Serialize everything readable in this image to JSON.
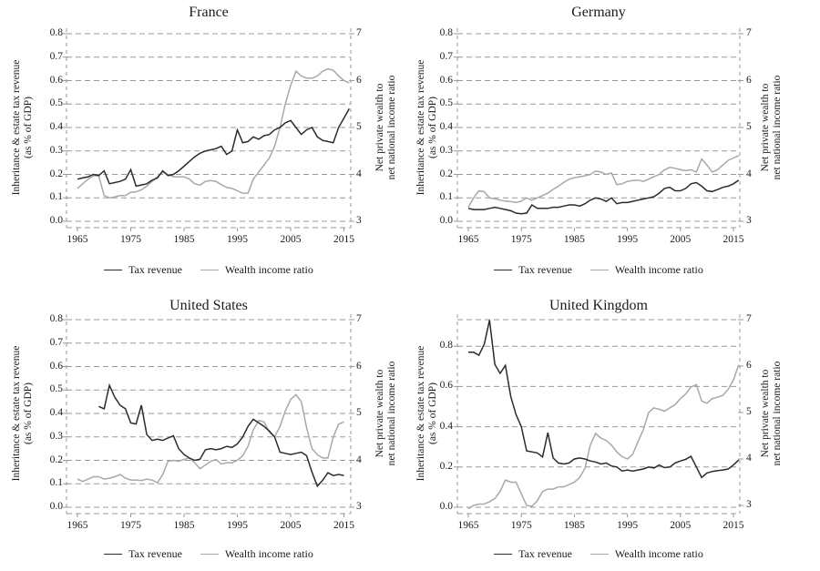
{
  "figure": {
    "background": "#ffffff",
    "grid_color": "#999999",
    "text_color": "#1a1a1a",
    "series_colors": {
      "tax_revenue": "#2b2b2b",
      "wealth_income_ratio": "#a8a8a8"
    }
  },
  "chart_data": [
    {
      "type": "line",
      "title": "France",
      "x_axis": {
        "tick_labels": [
          "1965",
          "1975",
          "1985",
          "1995",
          "2005",
          "2015"
        ]
      },
      "left_axis": {
        "label": [
          "Inheritance & estate tax revenue",
          "(as % of GDP)"
        ],
        "tick_labels": [
          "0.0",
          "0.1",
          "0.2",
          "0.3",
          "0.4",
          "0.5",
          "0.6",
          "0.7",
          "0.8"
        ],
        "range": [
          0,
          0.8
        ]
      },
      "right_axis": {
        "label": [
          "Net private wealth to",
          "net national income ratio"
        ],
        "tick_labels": [
          "3",
          "4",
          "5",
          "6",
          "7"
        ],
        "range": [
          3,
          7
        ]
      },
      "legend": [
        "Tax revenue",
        "Wealth income ratio"
      ],
      "series": [
        {
          "name": "Tax revenue",
          "axis": "left",
          "color": "#2b2b2b",
          "start_year": 1965,
          "values": [
            0.18,
            0.185,
            0.19,
            0.2,
            0.195,
            0.215,
            0.16,
            0.165,
            0.17,
            0.18,
            0.22,
            0.15,
            0.155,
            0.16,
            0.175,
            0.185,
            0.215,
            0.195,
            0.2,
            0.215,
            0.235,
            0.255,
            0.275,
            0.29,
            0.3,
            0.305,
            0.31,
            0.32,
            0.285,
            0.3,
            0.39,
            0.335,
            0.34,
            0.36,
            0.35,
            0.365,
            0.37,
            0.39,
            0.4,
            0.42,
            0.43,
            0.4,
            0.37,
            0.39,
            0.4,
            0.36,
            0.345,
            0.34,
            0.335,
            0.4,
            0.44,
            0.48
          ]
        },
        {
          "name": "Wealth income ratio",
          "axis": "right",
          "color": "#a8a8a8",
          "start_year": 1965,
          "values": [
            3.7,
            3.8,
            3.9,
            3.97,
            3.97,
            3.55,
            3.5,
            3.52,
            3.55,
            3.55,
            3.62,
            3.63,
            3.67,
            3.75,
            3.85,
            3.95,
            4.05,
            4.0,
            3.95,
            3.95,
            3.95,
            3.9,
            3.8,
            3.77,
            3.85,
            3.87,
            3.85,
            3.78,
            3.72,
            3.7,
            3.65,
            3.6,
            3.6,
            3.9,
            4.05,
            4.2,
            4.35,
            4.6,
            5.0,
            5.5,
            5.9,
            6.2,
            6.1,
            6.05,
            6.05,
            6.1,
            6.2,
            6.25,
            6.22,
            6.1,
            6.0,
            5.95
          ]
        }
      ]
    },
    {
      "type": "line",
      "title": "Germany",
      "x_axis": {
        "tick_labels": [
          "1965",
          "1975",
          "1985",
          "1995",
          "2005",
          "2015"
        ]
      },
      "left_axis": {
        "label": [
          "Inheritance & estate tax revenue",
          "(as % of GDP)"
        ],
        "tick_labels": [
          "0.0",
          "0.1",
          "0.2",
          "0.3",
          "0.4",
          "0.5",
          "0.6",
          "0.7",
          "0.8"
        ],
        "range": [
          0,
          0.8
        ]
      },
      "right_axis": {
        "label": [
          "Net private wealth to",
          "net national income ratio"
        ],
        "tick_labels": [
          "3",
          "4",
          "5",
          "6",
          "7"
        ],
        "range": [
          3,
          7
        ]
      },
      "legend": [
        "Tax revenue",
        "Wealth income ratio"
      ],
      "series": [
        {
          "name": "Tax revenue",
          "axis": "left",
          "color": "#2b2b2b",
          "start_year": 1965,
          "values": [
            0.055,
            0.05,
            0.05,
            0.05,
            0.055,
            0.06,
            0.055,
            0.05,
            0.045,
            0.035,
            0.032,
            0.035,
            0.07,
            0.055,
            0.055,
            0.055,
            0.06,
            0.06,
            0.065,
            0.07,
            0.07,
            0.065,
            0.075,
            0.09,
            0.1,
            0.095,
            0.085,
            0.1,
            0.075,
            0.08,
            0.08,
            0.085,
            0.09,
            0.095,
            0.1,
            0.105,
            0.12,
            0.14,
            0.145,
            0.13,
            0.13,
            0.14,
            0.16,
            0.165,
            0.15,
            0.13,
            0.127,
            0.135,
            0.145,
            0.15,
            0.16,
            0.175
          ]
        },
        {
          "name": "Wealth income ratio",
          "axis": "right",
          "color": "#a8a8a8",
          "start_year": 1965,
          "values": [
            3.3,
            3.5,
            3.65,
            3.63,
            3.5,
            3.48,
            3.45,
            3.43,
            3.42,
            3.4,
            3.43,
            3.5,
            3.45,
            3.5,
            3.55,
            3.6,
            3.68,
            3.75,
            3.83,
            3.9,
            3.93,
            3.95,
            3.97,
            4.0,
            4.07,
            4.05,
            4.0,
            4.03,
            3.78,
            3.8,
            3.85,
            3.87,
            3.88,
            3.85,
            3.9,
            3.95,
            4.0,
            4.1,
            4.15,
            4.13,
            4.1,
            4.08,
            4.1,
            4.05,
            4.33,
            4.2,
            4.05,
            4.1,
            4.2,
            4.3,
            4.35,
            4.4
          ]
        }
      ]
    },
    {
      "type": "line",
      "title": "United States",
      "x_axis": {
        "tick_labels": [
          "1965",
          "1975",
          "1985",
          "1995",
          "2005",
          "2015"
        ]
      },
      "left_axis": {
        "label": [
          "Inheritance & estate tax revenue",
          "(as % of GDP)"
        ],
        "tick_labels": [
          "0.0",
          "0.1",
          "0.2",
          "0.3",
          "0.4",
          "0.5",
          "0.6",
          "0.7",
          "0.8"
        ],
        "range": [
          0,
          0.8
        ]
      },
      "right_axis": {
        "label": [
          "Net private wealth to",
          "net national income ratio"
        ],
        "tick_labels": [
          "3",
          "4",
          "5",
          "6",
          "7"
        ],
        "range": [
          3,
          7
        ]
      },
      "legend": [
        "Tax revenue",
        "Wealth income ratio"
      ],
      "series": [
        {
          "name": "Tax revenue",
          "axis": "left",
          "color": "#2b2b2b",
          "start_year": 1969,
          "values": [
            0.43,
            0.42,
            0.52,
            0.47,
            0.435,
            0.42,
            0.36,
            0.355,
            0.435,
            0.31,
            0.285,
            0.29,
            0.285,
            0.295,
            0.305,
            0.25,
            0.225,
            0.21,
            0.2,
            0.205,
            0.245,
            0.25,
            0.245,
            0.25,
            0.26,
            0.255,
            0.27,
            0.3,
            0.345,
            0.375,
            0.36,
            0.345,
            0.325,
            0.3,
            0.235,
            0.23,
            0.225,
            0.23,
            0.235,
            0.22,
            0.15,
            0.09,
            0.115,
            0.147,
            0.135,
            0.14,
            0.135
          ]
        },
        {
          "name": "Wealth income ratio",
          "axis": "right",
          "color": "#a8a8a8",
          "start_year": 1965,
          "values": [
            3.6,
            3.55,
            3.6,
            3.65,
            3.65,
            3.6,
            3.62,
            3.65,
            3.7,
            3.62,
            3.58,
            3.58,
            3.57,
            3.6,
            3.58,
            3.52,
            3.7,
            3.98,
            4.0,
            3.98,
            4.02,
            4.05,
            3.95,
            3.82,
            3.9,
            3.98,
            4.02,
            3.92,
            3.95,
            3.95,
            4.0,
            4.1,
            4.3,
            4.65,
            4.85,
            4.82,
            4.6,
            4.5,
            4.72,
            5.05,
            5.3,
            5.4,
            5.25,
            4.7,
            4.25,
            4.12,
            4.05,
            4.05,
            4.5,
            4.77,
            4.82
          ]
        }
      ]
    },
    {
      "type": "line",
      "title": "United Kingdom",
      "x_axis": {
        "tick_labels": [
          "1965",
          "1975",
          "1985",
          "1995",
          "2005",
          "2015"
        ]
      },
      "left_axis": {
        "label": [
          "Inheritance & estate tax revenue",
          "(as % of GDP)"
        ],
        "tick_labels": [
          "0.0",
          "0.2",
          "0.4",
          "0.6",
          "0.8"
        ],
        "range": [
          0,
          0.93
        ]
      },
      "right_axis": {
        "label": [
          "Net private wealth to",
          "net national income ratio"
        ],
        "tick_labels": [
          "3",
          "4",
          "5",
          "6",
          "7"
        ],
        "range": [
          3,
          7
        ]
      },
      "legend": [
        "Tax revenue",
        "Wealth income ratio"
      ],
      "series": [
        {
          "name": "Tax revenue",
          "axis": "left",
          "color": "#2b2b2b",
          "start_year": 1965,
          "values": [
            0.77,
            0.77,
            0.755,
            0.81,
            0.93,
            0.71,
            0.665,
            0.705,
            0.55,
            0.46,
            0.4,
            0.28,
            0.275,
            0.27,
            0.25,
            0.37,
            0.245,
            0.22,
            0.215,
            0.22,
            0.24,
            0.245,
            0.24,
            0.23,
            0.225,
            0.215,
            0.22,
            0.205,
            0.2,
            0.18,
            0.185,
            0.18,
            0.185,
            0.19,
            0.2,
            0.195,
            0.21,
            0.197,
            0.2,
            0.22,
            0.23,
            0.238,
            0.253,
            0.2,
            0.148,
            0.17,
            0.178,
            0.182,
            0.185,
            0.19,
            0.21,
            0.235
          ]
        },
        {
          "name": "Wealth income ratio",
          "axis": "right",
          "color": "#a8a8a8",
          "start_year": 1965,
          "values": [
            2.93,
            3.0,
            3.03,
            3.03,
            3.08,
            3.15,
            3.3,
            3.55,
            3.5,
            3.5,
            3.25,
            3.0,
            2.98,
            3.1,
            3.3,
            3.35,
            3.35,
            3.4,
            3.4,
            3.45,
            3.5,
            3.6,
            3.8,
            4.3,
            4.55,
            4.45,
            4.4,
            4.3,
            4.15,
            4.05,
            4.0,
            4.1,
            4.37,
            4.63,
            5.0,
            5.1,
            5.07,
            5.03,
            5.1,
            5.17,
            5.3,
            5.4,
            5.55,
            5.6,
            5.25,
            5.2,
            5.3,
            5.33,
            5.37,
            5.5,
            5.7,
            6.03
          ]
        }
      ]
    }
  ]
}
